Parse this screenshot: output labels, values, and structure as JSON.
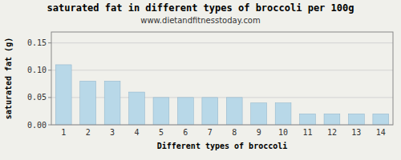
{
  "chart_data": {
    "type": "bar",
    "title": "saturated fat in different types of broccoli per 100g",
    "subtitle": "www.dietandfitnesstoday.com",
    "xlabel": "Different types of broccoli",
    "ylabel": "saturated fat (g)",
    "categories": [
      1,
      2,
      3,
      4,
      5,
      6,
      7,
      8,
      9,
      10,
      11,
      12,
      13,
      14
    ],
    "values": [
      0.11,
      0.08,
      0.08,
      0.06,
      0.05,
      0.05,
      0.05,
      0.05,
      0.04,
      0.04,
      0.02,
      0.02,
      0.02,
      0.02
    ],
    "color": "#b8d8e8",
    "ylim": [
      0,
      0.17
    ],
    "yticks": [
      {
        "value": 0,
        "label": "0.00"
      },
      0.05,
      {
        "value": 0.1,
        "label": "0.10"
      },
      0.15
    ],
    "grid": true
  }
}
